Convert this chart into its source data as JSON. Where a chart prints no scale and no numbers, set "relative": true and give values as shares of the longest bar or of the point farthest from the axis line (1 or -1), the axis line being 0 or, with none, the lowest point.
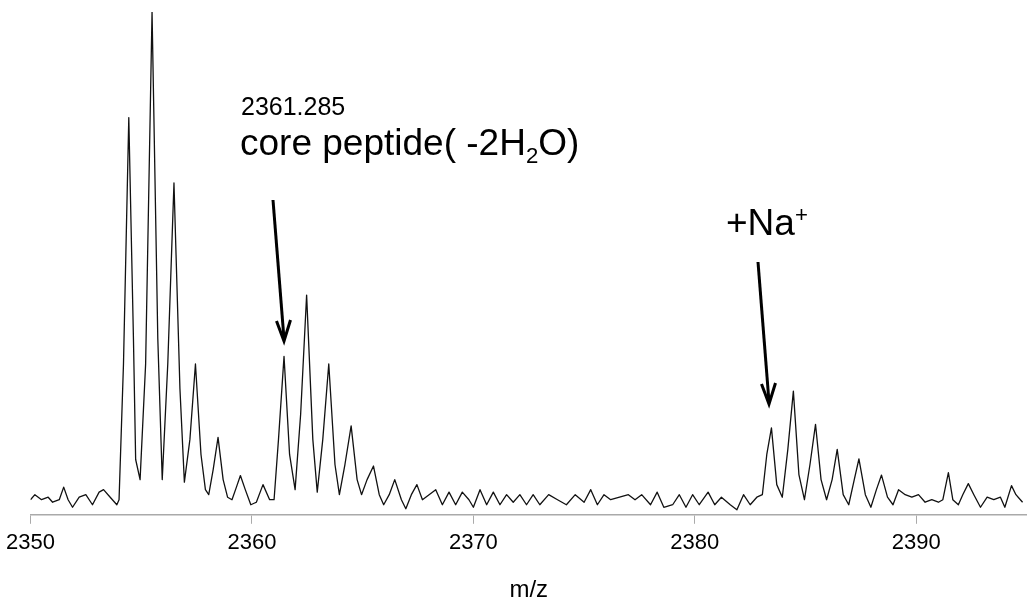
{
  "chart_data": {
    "type": "line",
    "xlabel": "m/z",
    "relative": true,
    "marker": "none",
    "color": "#111111",
    "xlim": [
      2350,
      2395
    ],
    "xticks": [
      2350,
      2360,
      2370,
      2380,
      2390
    ],
    "x": [
      2350.0,
      2350.2,
      2350.5,
      2350.8,
      2351.0,
      2351.3,
      2351.5,
      2351.7,
      2351.9,
      2352.2,
      2352.5,
      2352.8,
      2353.1,
      2353.3,
      2353.6,
      2353.9,
      2354.0,
      2354.2,
      2354.44,
      2354.65,
      2354.75,
      2354.95,
      2355.2,
      2355.49,
      2355.75,
      2355.95,
      2356.2,
      2356.48,
      2356.75,
      2356.95,
      2357.2,
      2357.45,
      2357.7,
      2357.9,
      2358.05,
      2358.25,
      2358.47,
      2358.7,
      2358.9,
      2359.1,
      2359.3,
      2359.48,
      2359.7,
      2359.95,
      2360.2,
      2360.5,
      2360.8,
      2361.0,
      2361.2,
      2361.45,
      2361.7,
      2361.95,
      2362.2,
      2362.47,
      2362.75,
      2362.95,
      2363.2,
      2363.47,
      2363.75,
      2363.95,
      2364.2,
      2364.48,
      2364.75,
      2364.95,
      2365.2,
      2365.49,
      2365.75,
      2365.95,
      2366.2,
      2366.45,
      2366.75,
      2366.95,
      2367.2,
      2367.45,
      2367.7,
      2368.0,
      2368.3,
      2368.6,
      2368.9,
      2369.2,
      2369.5,
      2369.8,
      2370.0,
      2370.3,
      2370.6,
      2370.9,
      2371.2,
      2371.5,
      2371.8,
      2372.1,
      2372.4,
      2372.7,
      2373.0,
      2373.4,
      2373.8,
      2374.2,
      2374.6,
      2375.0,
      2375.3,
      2375.6,
      2375.9,
      2376.2,
      2376.6,
      2377.0,
      2377.3,
      2377.6,
      2378.0,
      2378.3,
      2378.6,
      2379.0,
      2379.3,
      2379.6,
      2379.9,
      2380.2,
      2380.6,
      2380.9,
      2381.2,
      2381.6,
      2381.9,
      2382.2,
      2382.5,
      2382.8,
      2383.05,
      2383.25,
      2383.46,
      2383.7,
      2383.95,
      2384.2,
      2384.45,
      2384.7,
      2384.95,
      2385.2,
      2385.45,
      2385.7,
      2385.95,
      2386.2,
      2386.43,
      2386.7,
      2386.95,
      2387.2,
      2387.41,
      2387.7,
      2387.95,
      2388.2,
      2388.43,
      2388.7,
      2388.95,
      2389.2,
      2389.5,
      2389.8,
      2390.1,
      2390.4,
      2390.7,
      2391.0,
      2391.2,
      2391.45,
      2391.65,
      2391.9,
      2392.1,
      2392.35,
      2392.6,
      2392.9,
      2393.2,
      2393.5,
      2393.8,
      2394.0,
      2394.3,
      2394.5,
      2394.8
    ],
    "values": [
      0.03,
      0.04,
      0.03,
      0.035,
      0.025,
      0.03,
      0.055,
      0.03,
      0.015,
      0.035,
      0.04,
      0.02,
      0.045,
      0.05,
      0.035,
      0.02,
      0.03,
      0.3,
      0.79,
      0.35,
      0.11,
      0.07,
      0.3,
      1.0,
      0.35,
      0.07,
      0.3,
      0.66,
      0.25,
      0.065,
      0.15,
      0.3,
      0.12,
      0.05,
      0.04,
      0.09,
      0.154,
      0.07,
      0.035,
      0.03,
      0.055,
      0.078,
      0.05,
      0.02,
      0.025,
      0.06,
      0.03,
      0.03,
      0.15,
      0.315,
      0.12,
      0.05,
      0.2,
      0.437,
      0.15,
      0.045,
      0.15,
      0.3,
      0.1,
      0.04,
      0.1,
      0.177,
      0.07,
      0.04,
      0.07,
      0.097,
      0.04,
      0.02,
      0.04,
      0.07,
      0.03,
      0.012,
      0.04,
      0.06,
      0.03,
      0.04,
      0.05,
      0.02,
      0.045,
      0.02,
      0.045,
      0.03,
      0.015,
      0.05,
      0.02,
      0.045,
      0.02,
      0.04,
      0.025,
      0.04,
      0.02,
      0.04,
      0.02,
      0.04,
      0.03,
      0.02,
      0.04,
      0.025,
      0.05,
      0.02,
      0.04,
      0.03,
      0.035,
      0.04,
      0.03,
      0.04,
      0.02,
      0.045,
      0.015,
      0.02,
      0.04,
      0.015,
      0.04,
      0.02,
      0.045,
      0.02,
      0.035,
      0.02,
      0.01,
      0.04,
      0.02,
      0.035,
      0.04,
      0.12,
      0.173,
      0.06,
      0.035,
      0.13,
      0.246,
      0.08,
      0.03,
      0.1,
      0.18,
      0.07,
      0.03,
      0.07,
      0.13,
      0.04,
      0.02,
      0.07,
      0.111,
      0.04,
      0.015,
      0.05,
      0.079,
      0.035,
      0.02,
      0.05,
      0.04,
      0.035,
      0.04,
      0.025,
      0.03,
      0.025,
      0.03,
      0.084,
      0.03,
      0.02,
      0.04,
      0.062,
      0.04,
      0.015,
      0.035,
      0.03,
      0.035,
      0.015,
      0.058,
      0.04,
      0.025
    ],
    "annotations": [
      "2361.285",
      "core peptide( -2H$_{2}$O)",
      "+Na$^{+}$"
    ]
  }
}
